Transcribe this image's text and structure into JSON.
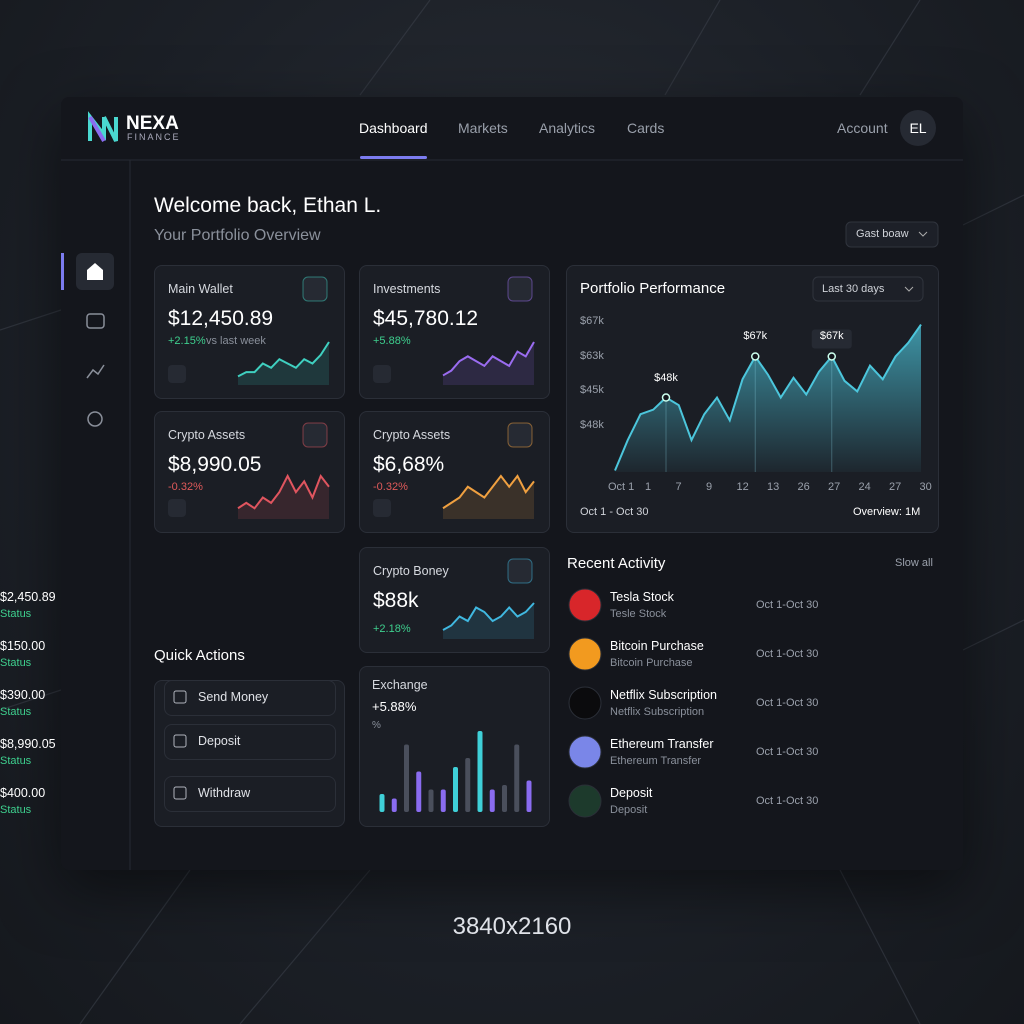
{
  "brand": {
    "name": "NEXA",
    "sub": "FINANCE"
  },
  "nav": {
    "items": [
      "Dashboard",
      "Markets",
      "Analytics",
      "Cards"
    ],
    "account": "Account",
    "avatar": "EL"
  },
  "welcome": {
    "title": "Welcome back, Ethan L.",
    "subtitle": "Your Portfolio Overview",
    "dropdown": "Gast boaw"
  },
  "cards": [
    {
      "title": "Main Wallet",
      "value": "$12,450.89",
      "change": "+2.15%",
      "note": "vs last week",
      "color": "#3fd0c0",
      "change_color": "#3ecf8e",
      "values": [
        2,
        3,
        3,
        5,
        4,
        6,
        5,
        4,
        6,
        5,
        7,
        10
      ]
    },
    {
      "title": "Investments",
      "value": "$45,780.12",
      "change": "+5.88%",
      "color": "#9a6cf0",
      "change_color": "#3ecf8e",
      "values": [
        2,
        3,
        5,
        6,
        5,
        4,
        6,
        5,
        4,
        7,
        6,
        9
      ]
    },
    {
      "title": "Crypto Assets",
      "value": "$8,990.05",
      "change": "-0.32%",
      "color": "#e0555f",
      "change_color": "#e05a5a",
      "values": [
        2,
        3,
        2,
        4,
        3,
        5,
        8,
        5,
        7,
        4,
        8,
        6
      ]
    },
    {
      "title": "Crypto Assets",
      "value": "$6,68%",
      "change": "-0.32%",
      "color": "#f0a040",
      "change_color": "#e05a5a",
      "values": [
        2,
        3,
        4,
        6,
        5,
        4,
        6,
        8,
        6,
        8,
        5,
        7
      ]
    },
    {
      "title": "Crypto Boney",
      "value": "$88k",
      "change": "+2.18%",
      "color": "#40b8e0",
      "change_color": "#3ecf8e",
      "values": [
        2,
        3,
        5,
        4,
        7,
        6,
        4,
        5,
        7,
        5,
        6,
        8
      ]
    }
  ],
  "quick_actions": {
    "title": "Quick Actions",
    "items": [
      "Send Money",
      "Deposit",
      "Withdraw"
    ]
  },
  "exchange": {
    "title": "Exchange",
    "value": "+5.88%",
    "unit": "%",
    "ylim": [
      0,
      100
    ],
    "values": [
      20,
      15,
      75,
      45,
      25,
      25,
      50,
      60,
      90,
      25,
      30,
      75,
      35
    ],
    "colors": [
      "#3fd0d8",
      "#8a6cf0",
      "#4a4f5c",
      "#8a6cf0",
      "#4a4f5c",
      "#8a6cf0",
      "#3fd0d8",
      "#4a4f5c",
      "#3fd0d8",
      "#8a6cf0",
      "#4a4f5c",
      "#4a4f5c",
      "#8a6cf0"
    ]
  },
  "portfolio": {
    "title": "Portfolio Performance",
    "range": "Last 30 days",
    "y_labels": [
      "$67k",
      "$63k",
      "$45k",
      "$48k"
    ],
    "x_labels": [
      "Oct 1",
      "1",
      "7",
      "9",
      "12",
      "13",
      "26",
      "27",
      "24",
      "27",
      "30"
    ],
    "ylim": [
      0,
      100
    ],
    "color": "#4cc6dc",
    "values": [
      1,
      21,
      38,
      41,
      49,
      44,
      21,
      38,
      49,
      34,
      61,
      76,
      64,
      49,
      62,
      51,
      66,
      76,
      60,
      53,
      70,
      61,
      76,
      85,
      97
    ],
    "annotations": [
      {
        "text": "$48k",
        "point": 4
      },
      {
        "text": "$67k",
        "point": 11
      },
      {
        "text": "$67k",
        "point": 17
      }
    ],
    "period": "Oct 1 - Oct 30",
    "overview": "Overview: 1M"
  },
  "activity": {
    "title": "Recent Activity",
    "link": "Slow all",
    "items": [
      {
        "name": "Tesla Stock",
        "sub": "Tesle Stock",
        "date": "Oct 1-Oct 30",
        "amount": "$2,450.89",
        "status": "Status",
        "color": "#d8262a"
      },
      {
        "name": "Bitcoin Purchase",
        "sub": "Bitcoin Purchase",
        "date": "Oct 1-Oct 30",
        "amount": "$150.00",
        "status": "Status",
        "color": "#f29a1f"
      },
      {
        "name": "Netflix Subscription",
        "sub": "Netflix Subscription",
        "date": "Oct 1-Oct 30",
        "amount": "$390.00",
        "status": "Status",
        "color": "#0b0b0d"
      },
      {
        "name": "Ethereum Transfer",
        "sub": "Ethereum Transfer",
        "date": "Oct 1-Oct 30",
        "amount": "$8,990.05",
        "status": "Status",
        "color": "#7a86e8"
      },
      {
        "name": "Deposit",
        "sub": "Deposit",
        "date": "Oct 1-Oct 30",
        "amount": "$400.00",
        "status": "Status",
        "color": "#1d3a2c"
      }
    ]
  },
  "caption": "3840x2160"
}
